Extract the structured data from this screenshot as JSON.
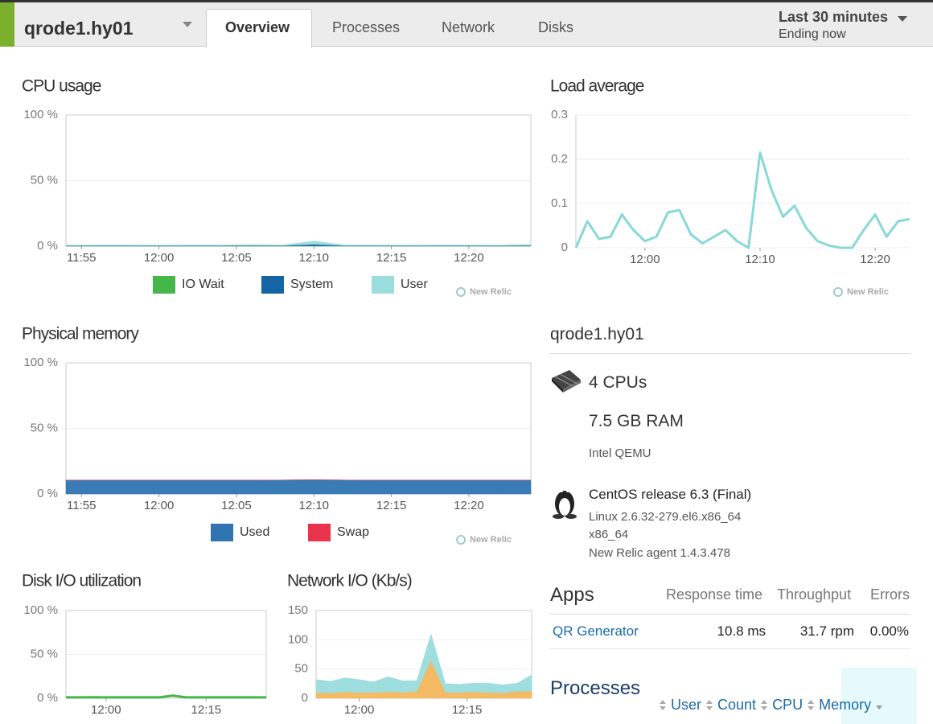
{
  "header": {
    "host": "qrode1.hy01",
    "tabs": [
      "Overview",
      "Processes",
      "Network",
      "Disks"
    ],
    "active_tab": "Overview",
    "time_range": "Last 30 minutes",
    "time_end": "Ending now"
  },
  "chart_data": [
    {
      "type": "area",
      "title": "CPU usage",
      "source": "New Relic",
      "legend": true,
      "x": [
        "11:54",
        "11:56",
        "11:58",
        "12:00",
        "12:02",
        "12:04",
        "12:06",
        "12:08",
        "12:10",
        "12:12",
        "12:14",
        "12:16",
        "12:18",
        "12:20",
        "12:22",
        "12:24"
      ],
      "xlim": [
        "11:54",
        "12:24"
      ],
      "xticks": [
        "11:55",
        "12:00",
        "12:05",
        "12:10",
        "12:15",
        "12:20"
      ],
      "ylim": [
        0,
        100
      ],
      "yticks": [
        {
          "value": 0,
          "label": "0 %"
        },
        {
          "value": 50,
          "label": "50 %"
        },
        {
          "value": 100,
          "label": "100 %"
        }
      ],
      "series": [
        {
          "name": "IO Wait",
          "color": "#45b649",
          "values": [
            0.1,
            0.1,
            0.1,
            0.1,
            0.1,
            0.1,
            0.1,
            0.1,
            0.2,
            0.1,
            0.1,
            0.1,
            0.1,
            0.1,
            0.1,
            0.1
          ]
        },
        {
          "name": "System",
          "color": "#1565a5",
          "values": [
            0.3,
            0.3,
            0.3,
            0.3,
            0.3,
            0.3,
            0.4,
            0.3,
            1.2,
            0.3,
            0.3,
            0.3,
            0.3,
            0.3,
            0.3,
            0.4
          ]
        },
        {
          "name": "User",
          "color": "#99dddd",
          "values": [
            0.4,
            0.5,
            0.5,
            0.4,
            0.5,
            0.5,
            0.6,
            0.5,
            2.5,
            0.5,
            0.5,
            0.4,
            0.5,
            0.5,
            0.4,
            0.8
          ]
        }
      ]
    },
    {
      "type": "line",
      "title": "Load average",
      "source": "New Relic",
      "legend": false,
      "x": [
        "11:54",
        "11:55",
        "11:56",
        "11:57",
        "11:58",
        "11:59",
        "12:00",
        "12:01",
        "12:02",
        "12:03",
        "12:04",
        "12:05",
        "12:06",
        "12:07",
        "12:08",
        "12:09",
        "12:10",
        "12:11",
        "12:12",
        "12:13",
        "12:14",
        "12:15",
        "12:16",
        "12:17",
        "12:18",
        "12:19",
        "12:20",
        "12:21",
        "12:22",
        "12:23"
      ],
      "xlim": [
        "11:54",
        "12:23"
      ],
      "xticks": [
        "12:00",
        "12:10",
        "12:20"
      ],
      "ylim": [
        0,
        0.3
      ],
      "yticks": [
        0,
        0.1,
        0.2,
        0.3
      ],
      "series": [
        {
          "color": "#88d8d8",
          "values": [
            0.0,
            0.06,
            0.02,
            0.025,
            0.075,
            0.04,
            0.015,
            0.025,
            0.08,
            0.085,
            0.03,
            0.01,
            0.025,
            0.04,
            0.015,
            0.0,
            0.215,
            0.13,
            0.07,
            0.095,
            0.045,
            0.015,
            0.005,
            0.0,
            0.0,
            0.04,
            0.075,
            0.025,
            0.06,
            0.065
          ]
        }
      ]
    },
    {
      "type": "area",
      "title": "Physical memory",
      "source": "New Relic",
      "legend": true,
      "x": [
        "11:54",
        "11:56",
        "11:58",
        "12:00",
        "12:02",
        "12:04",
        "12:06",
        "12:08",
        "12:10",
        "12:12",
        "12:14",
        "12:16",
        "12:18",
        "12:20",
        "12:22",
        "12:24"
      ],
      "xlim": [
        "11:54",
        "12:24"
      ],
      "xticks": [
        "11:55",
        "12:00",
        "12:05",
        "12:10",
        "12:15",
        "12:20"
      ],
      "ylim": [
        0,
        100
      ],
      "yticks": [
        {
          "value": 0,
          "label": "0 %"
        },
        {
          "value": 50,
          "label": "50 %"
        },
        {
          "value": 100,
          "label": "100 %"
        }
      ],
      "series": [
        {
          "name": "Used",
          "color": "#2f74b0",
          "values": [
            10.5,
            10.5,
            10.5,
            10.5,
            10.5,
            10.5,
            10.5,
            10.6,
            10.8,
            10.6,
            10.5,
            10.5,
            10.5,
            10.5,
            10.5,
            10.5
          ]
        },
        {
          "name": "Swap",
          "color": "#e8334a",
          "values": [
            0,
            0,
            0,
            0,
            0,
            0,
            0,
            0,
            0,
            0,
            0,
            0,
            0,
            0,
            0,
            0
          ]
        }
      ]
    },
    {
      "type": "line",
      "title": "Disk I/O utilization",
      "legend": false,
      "x": [
        "11:54",
        "11:56",
        "11:58",
        "12:00",
        "12:02",
        "12:04",
        "12:06",
        "12:08",
        "12:10",
        "12:12",
        "12:14",
        "12:16",
        "12:18",
        "12:20",
        "12:22",
        "12:24"
      ],
      "xlim": [
        "11:54",
        "12:24"
      ],
      "xticks": [
        "12:00",
        "12:15"
      ],
      "ylim": [
        0,
        100
      ],
      "yticks": [
        {
          "value": 0,
          "label": "0 %"
        },
        {
          "value": 50,
          "label": "50 %"
        },
        {
          "value": 100,
          "label": "100 %"
        }
      ],
      "series": [
        {
          "color": "#45b649",
          "values": [
            1,
            1,
            1.2,
            1,
            1,
            1,
            1,
            1,
            3,
            1,
            1,
            1,
            1,
            1,
            1,
            1
          ]
        }
      ]
    },
    {
      "type": "area",
      "title": "Network I/O (Kb/s)",
      "legend": false,
      "x": [
        "11:54",
        "11:56",
        "11:58",
        "12:00",
        "12:02",
        "12:04",
        "12:06",
        "12:08",
        "12:10",
        "12:12",
        "12:14",
        "12:16",
        "12:18",
        "12:20",
        "12:22",
        "12:24"
      ],
      "xlim": [
        "11:54",
        "12:24"
      ],
      "xticks": [
        "12:00",
        "12:15"
      ],
      "ylim": [
        0,
        150
      ],
      "yticks": [
        0,
        50,
        100,
        150
      ],
      "series": [
        {
          "color": "#f5b85c",
          "values": [
            10,
            9,
            11,
            10,
            10,
            11,
            10,
            12,
            65,
            10,
            10,
            11,
            10,
            9,
            12,
            12
          ]
        },
        {
          "color": "#99dddd",
          "values": [
            22,
            20,
            24,
            22,
            18,
            26,
            20,
            18,
            45,
            15,
            14,
            15,
            16,
            14,
            14,
            28
          ]
        }
      ]
    }
  ],
  "server": {
    "name": "qrode1.hy01",
    "cpus": "4 CPUs",
    "ram": "7.5 GB RAM",
    "processor": "Intel QEMU",
    "os": "CentOS release 6.3 (Final)",
    "kernel": "Linux 2.6.32-279.el6.x86_64",
    "arch": "x86_64",
    "agent": "New Relic agent 1.4.3.478"
  },
  "apps": {
    "title": "Apps",
    "columns": [
      "Response time",
      "Throughput",
      "Errors"
    ],
    "rows": [
      [
        "QR Generator",
        "10.8 ms",
        "31.7 rpm",
        "0.00%"
      ]
    ]
  },
  "processes": {
    "title": "Processes",
    "columns": [
      "User",
      "Count",
      "CPU",
      "Memory"
    ]
  }
}
